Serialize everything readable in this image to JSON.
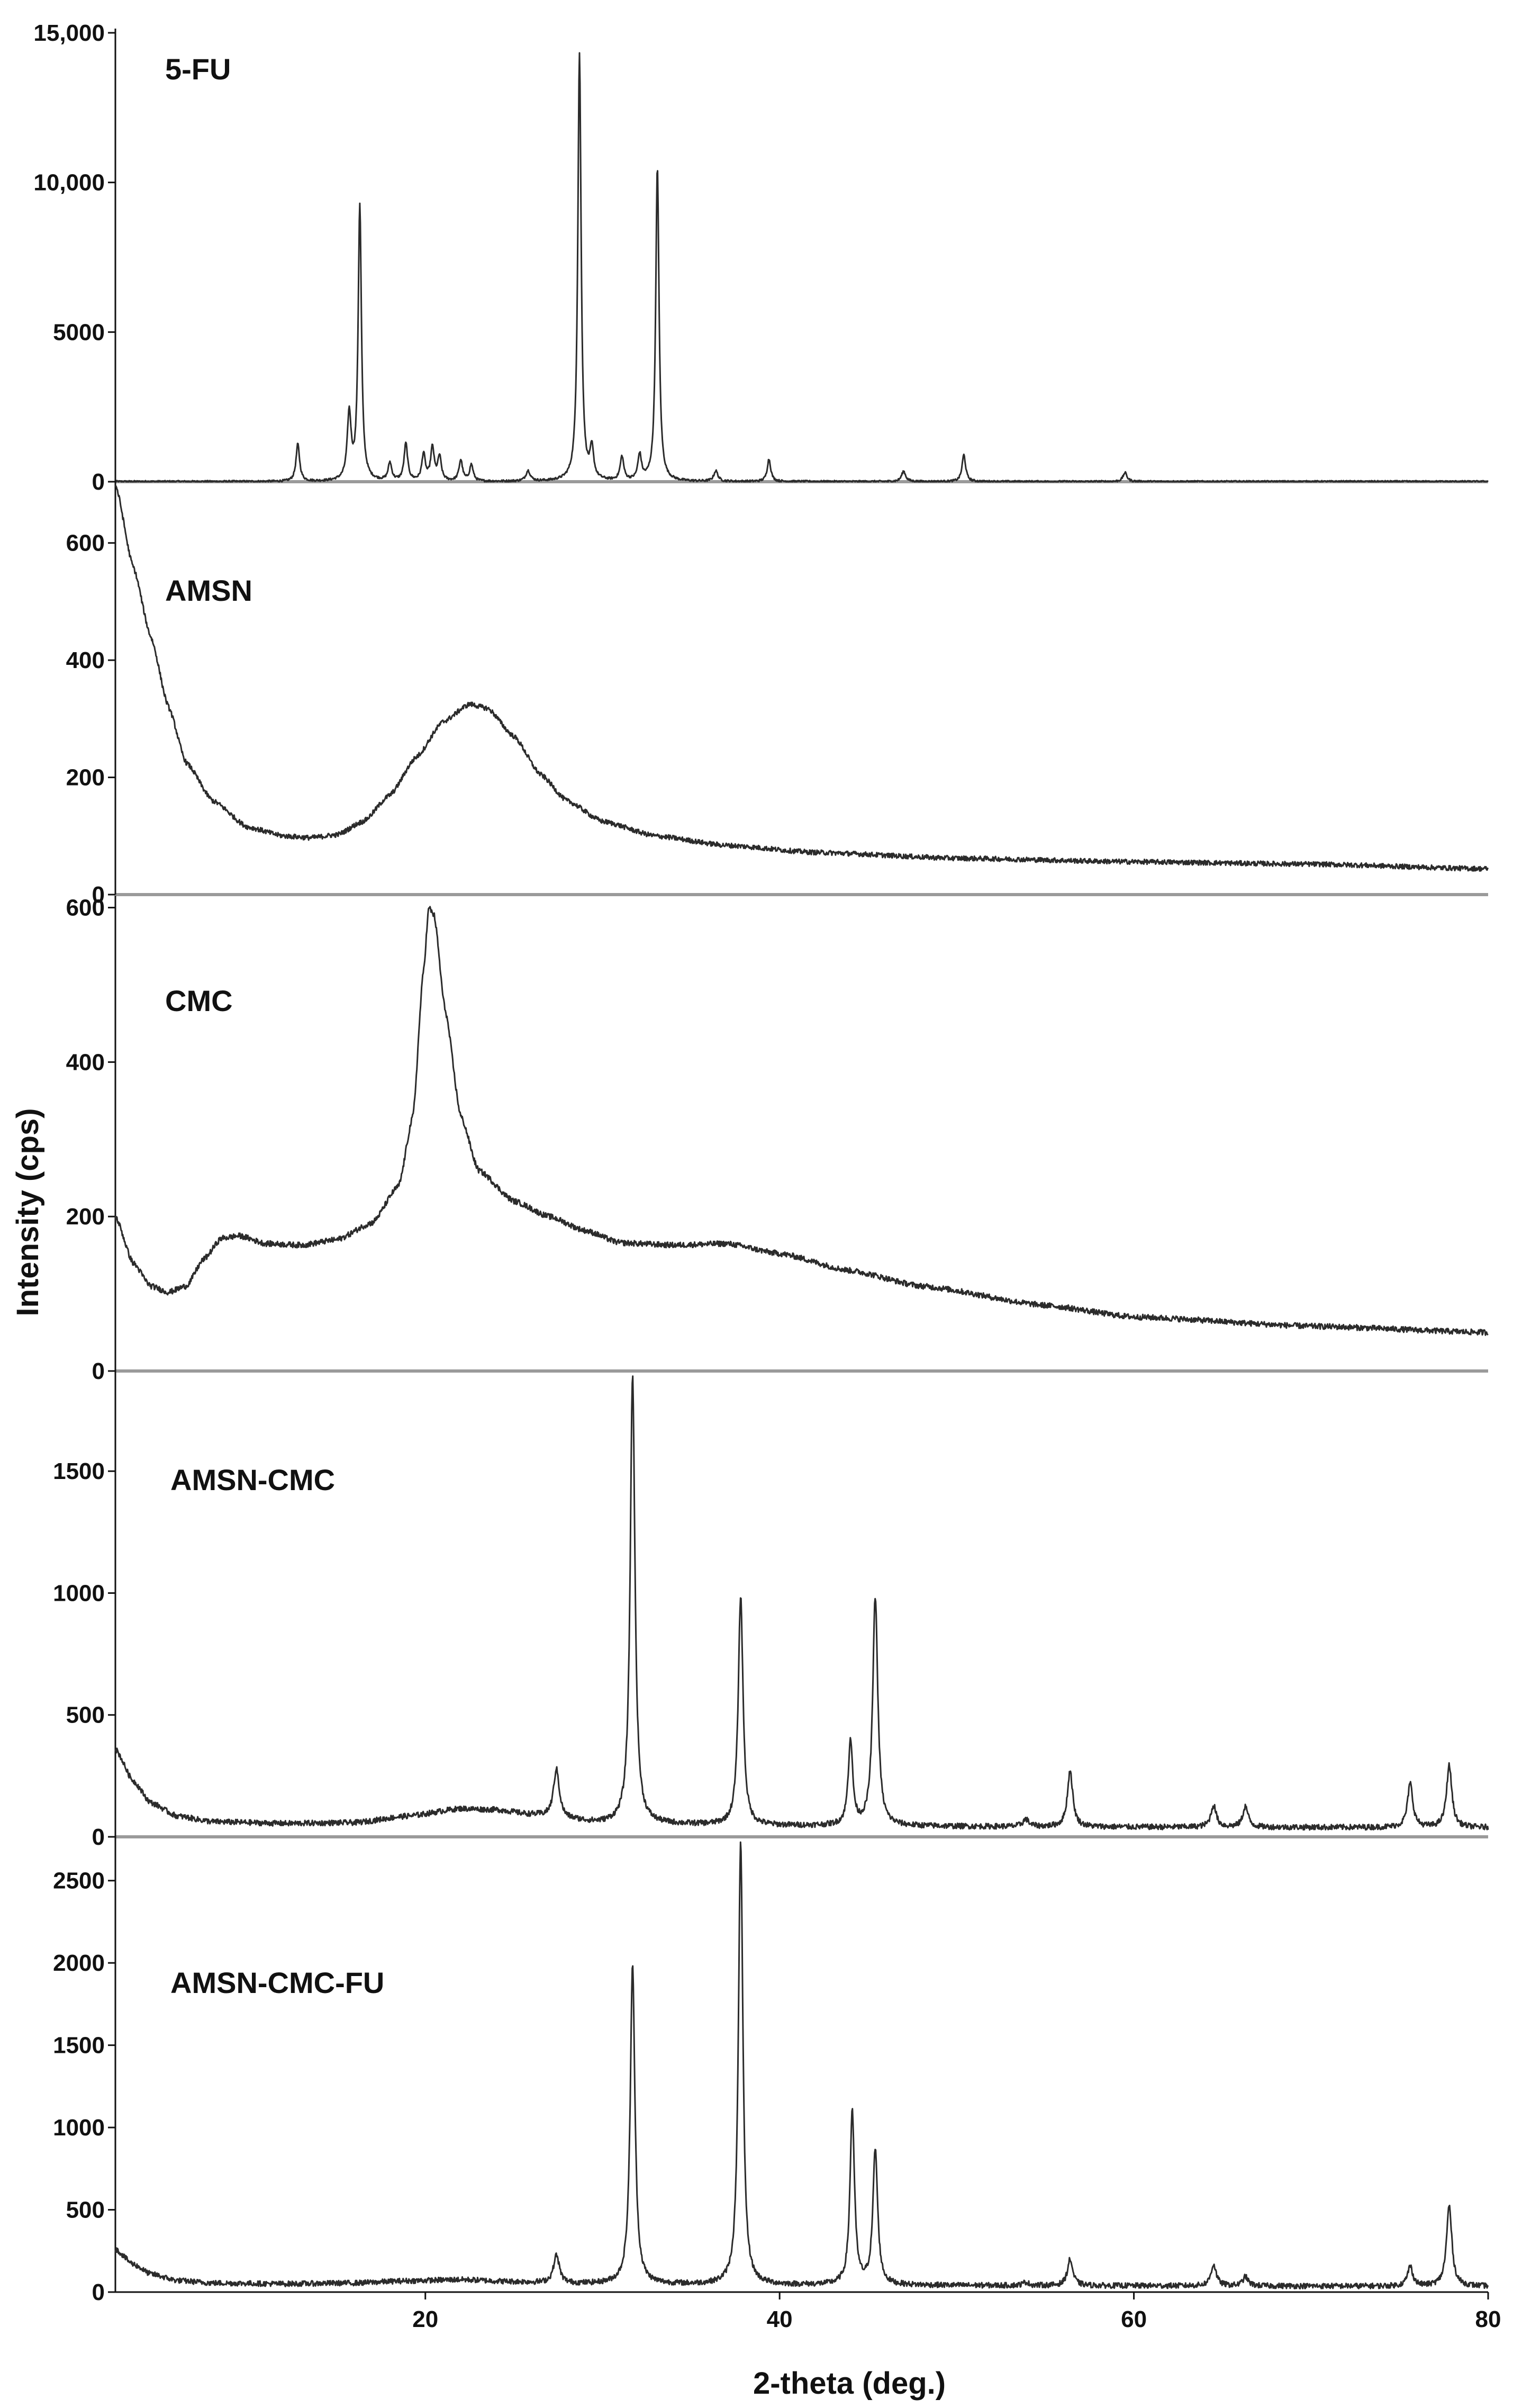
{
  "chart_data": {
    "type": "line",
    "layout": "stacked-panels",
    "xlabel": "2-theta (deg.)",
    "ylabel": "Intensity (cps)",
    "xlim": [
      2.5,
      80
    ],
    "xticks": [
      "20",
      "40",
      "60",
      "80"
    ],
    "xtick_values": [
      20,
      40,
      60,
      80
    ],
    "line_color": "#2b2b2b",
    "panels": [
      {
        "label": "5-FU",
        "ylim": [
          0,
          15000
        ],
        "yticks": [
          "0",
          "5000",
          "10,000",
          "15,000"
        ],
        "ytick_values": [
          0,
          5000,
          10000,
          15000
        ],
        "baseline": 0,
        "peaks": [
          {
            "x": 12.8,
            "y": 1250,
            "w": 0.12
          },
          {
            "x": 15.7,
            "y": 2200,
            "w": 0.13
          },
          {
            "x": 16.3,
            "y": 9200,
            "w": 0.11
          },
          {
            "x": 18.0,
            "y": 600,
            "w": 0.12
          },
          {
            "x": 18.9,
            "y": 1250,
            "w": 0.12
          },
          {
            "x": 19.9,
            "y": 900,
            "w": 0.12
          },
          {
            "x": 20.4,
            "y": 1100,
            "w": 0.12
          },
          {
            "x": 20.8,
            "y": 800,
            "w": 0.12
          },
          {
            "x": 22.0,
            "y": 700,
            "w": 0.12
          },
          {
            "x": 22.6,
            "y": 550,
            "w": 0.12
          },
          {
            "x": 25.8,
            "y": 350,
            "w": 0.15
          },
          {
            "x": 28.7,
            "y": 14300,
            "w": 0.11
          },
          {
            "x": 29.4,
            "y": 1000,
            "w": 0.12
          },
          {
            "x": 31.1,
            "y": 800,
            "w": 0.12
          },
          {
            "x": 32.1,
            "y": 850,
            "w": 0.12
          },
          {
            "x": 33.1,
            "y": 10500,
            "w": 0.11
          },
          {
            "x": 36.4,
            "y": 350,
            "w": 0.14
          },
          {
            "x": 39.4,
            "y": 750,
            "w": 0.12
          },
          {
            "x": 47.0,
            "y": 350,
            "w": 0.14
          },
          {
            "x": 50.4,
            "y": 900,
            "w": 0.12
          },
          {
            "x": 59.5,
            "y": 300,
            "w": 0.14
          }
        ]
      },
      {
        "label": "AMSN",
        "ylim": [
          0,
          700
        ],
        "yticks": [
          "0",
          "200",
          "400",
          "600"
        ],
        "ytick_values": [
          0,
          200,
          400,
          600
        ],
        "baseline_points": [
          [
            2.5,
            700
          ],
          [
            3.5,
            560
          ],
          [
            4.5,
            440
          ],
          [
            5.5,
            320
          ],
          [
            6.5,
            225
          ],
          [
            8,
            160
          ],
          [
            10,
            115
          ],
          [
            12,
            100
          ],
          [
            13.5,
            97
          ],
          [
            15,
            102
          ],
          [
            16.5,
            125
          ],
          [
            18,
            170
          ],
          [
            19.5,
            235
          ],
          [
            21,
            295
          ],
          [
            22.5,
            325
          ],
          [
            23.5,
            318
          ],
          [
            25,
            270
          ],
          [
            26.5,
            205
          ],
          [
            28,
            160
          ],
          [
            30,
            125
          ],
          [
            33,
            100
          ],
          [
            37,
            84
          ],
          [
            42,
            72
          ],
          [
            50,
            62
          ],
          [
            60,
            56
          ],
          [
            70,
            52
          ],
          [
            80,
            44
          ]
        ]
      },
      {
        "label": "CMC",
        "ylim": [
          0,
          610
        ],
        "yticks": [
          "0",
          "200",
          "400",
          "600"
        ],
        "ytick_values": [
          0,
          200,
          400,
          600
        ],
        "baseline_points": [
          [
            2.5,
            200
          ],
          [
            3.5,
            140
          ],
          [
            4.5,
            110
          ],
          [
            5.5,
            102
          ],
          [
            6.5,
            110
          ],
          [
            7.5,
            145
          ],
          [
            8.5,
            172
          ],
          [
            9.5,
            175
          ],
          [
            11,
            165
          ],
          [
            13,
            163
          ],
          [
            15,
            170
          ],
          [
            17,
            192
          ],
          [
            18.5,
            240
          ],
          [
            19.3,
            330
          ],
          [
            19.9,
            520
          ],
          [
            20.2,
            600
          ],
          [
            20.5,
            590
          ],
          [
            21.1,
            470
          ],
          [
            22,
            330
          ],
          [
            23,
            260
          ],
          [
            25,
            220
          ],
          [
            27,
            200
          ],
          [
            29,
            182
          ],
          [
            31,
            166
          ],
          [
            34,
            163
          ],
          [
            37,
            165
          ],
          [
            40,
            152
          ],
          [
            44,
            130
          ],
          [
            48,
            110
          ],
          [
            55,
            85
          ],
          [
            60,
            70
          ],
          [
            70,
            58
          ],
          [
            80,
            50
          ]
        ]
      },
      {
        "label": "AMSN-CMC",
        "ylim": [
          0,
          1900
        ],
        "yticks": [
          "0",
          "500",
          "1000",
          "1500"
        ],
        "ytick_values": [
          0,
          500,
          1000,
          1500
        ],
        "baseline_points": [
          [
            2.5,
            360
          ],
          [
            3.5,
            230
          ],
          [
            4.5,
            140
          ],
          [
            6,
            85
          ],
          [
            8,
            62
          ],
          [
            12,
            55
          ],
          [
            16,
            58
          ],
          [
            19,
            85
          ],
          [
            22,
            115
          ],
          [
            24,
            110
          ],
          [
            26,
            90
          ],
          [
            28,
            70
          ],
          [
            30,
            55
          ],
          [
            40,
            45
          ],
          [
            60,
            40
          ],
          [
            80,
            38
          ]
        ],
        "peaks": [
          {
            "x": 27.4,
            "y": 200,
            "w": 0.2
          },
          {
            "x": 31.7,
            "y": 1840,
            "w": 0.16
          },
          {
            "x": 37.8,
            "y": 940,
            "w": 0.16
          },
          {
            "x": 44.0,
            "y": 350,
            "w": 0.15
          },
          {
            "x": 45.4,
            "y": 940,
            "w": 0.17
          },
          {
            "x": 53.9,
            "y": 30,
            "w": 0.2
          },
          {
            "x": 56.4,
            "y": 230,
            "w": 0.18
          },
          {
            "x": 64.5,
            "y": 90,
            "w": 0.18
          },
          {
            "x": 66.3,
            "y": 85,
            "w": 0.18
          },
          {
            "x": 75.6,
            "y": 180,
            "w": 0.18
          },
          {
            "x": 77.8,
            "y": 255,
            "w": 0.18
          }
        ]
      },
      {
        "label": "AMSN-CMC-FU",
        "ylim": [
          0,
          2750
        ],
        "yticks": [
          "0",
          "500",
          "1000",
          "1500",
          "2000",
          "2500"
        ],
        "ytick_values": [
          0,
          500,
          1000,
          1500,
          2000,
          2500
        ],
        "baseline_points": [
          [
            2.5,
            260
          ],
          [
            3.5,
            170
          ],
          [
            4.5,
            110
          ],
          [
            6,
            70
          ],
          [
            8,
            55
          ],
          [
            12,
            50
          ],
          [
            16,
            55
          ],
          [
            19,
            68
          ],
          [
            22,
            75
          ],
          [
            25,
            62
          ],
          [
            28,
            50
          ],
          [
            40,
            42
          ],
          [
            60,
            38
          ],
          [
            80,
            35
          ]
        ],
        "peaks": [
          {
            "x": 27.4,
            "y": 170,
            "w": 0.2
          },
          {
            "x": 31.7,
            "y": 1930,
            "w": 0.16
          },
          {
            "x": 37.8,
            "y": 2700,
            "w": 0.15
          },
          {
            "x": 44.1,
            "y": 1060,
            "w": 0.15
          },
          {
            "x": 45.4,
            "y": 820,
            "w": 0.16
          },
          {
            "x": 53.9,
            "y": 20,
            "w": 0.2
          },
          {
            "x": 56.4,
            "y": 160,
            "w": 0.18
          },
          {
            "x": 64.5,
            "y": 130,
            "w": 0.18
          },
          {
            "x": 66.3,
            "y": 55,
            "w": 0.18
          },
          {
            "x": 75.6,
            "y": 120,
            "w": 0.18
          },
          {
            "x": 77.8,
            "y": 490,
            "w": 0.18
          }
        ]
      }
    ]
  }
}
